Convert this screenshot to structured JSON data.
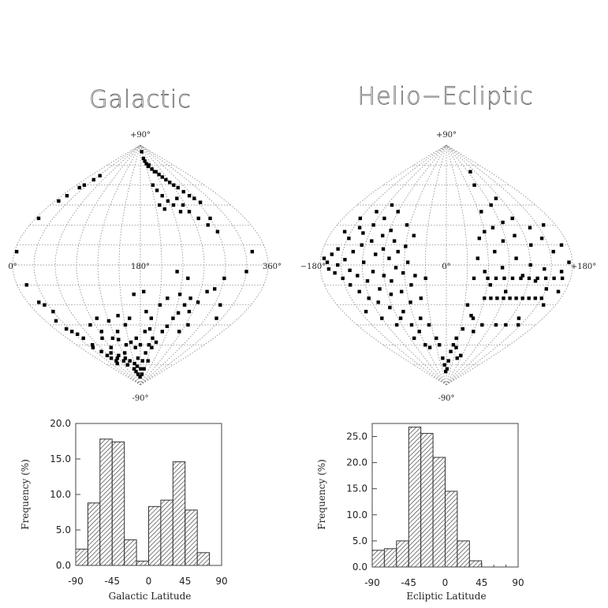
{
  "chart_data": [
    {
      "type": "scatter",
      "title": "Galactic",
      "projection": "sinusoidal equal-area sky map",
      "labels": {
        "top": "+90°",
        "bottom": "-90°",
        "left": "0°",
        "center": "180°",
        "right": "360°"
      },
      "points": [
        [
          12,
          52
        ],
        [
          18,
          58
        ],
        [
          22,
          60
        ],
        [
          30,
          64
        ],
        [
          34,
          67
        ],
        [
          8,
          48
        ],
        [
          5,
          35
        ],
        [
          3,
          10
        ],
        [
          14,
          -15
        ],
        [
          18,
          -28
        ],
        [
          24,
          -30
        ],
        [
          30,
          -35
        ],
        [
          20,
          -42
        ],
        [
          24,
          -48
        ],
        [
          30,
          -50
        ],
        [
          36,
          -52
        ],
        [
          40,
          -55
        ],
        [
          45,
          -60
        ],
        [
          38,
          -62
        ],
        [
          50,
          -65
        ],
        [
          55,
          -68
        ],
        [
          60,
          -70
        ],
        [
          62,
          -74
        ],
        [
          70,
          -72
        ],
        [
          78,
          -66
        ],
        [
          85,
          -70
        ],
        [
          92,
          -62
        ],
        [
          98,
          -68
        ],
        [
          104,
          -72
        ],
        [
          110,
          -75
        ],
        [
          118,
          -70
        ],
        [
          126,
          -66
        ],
        [
          132,
          -72
        ],
        [
          138,
          -78
        ],
        [
          145,
          -80
        ],
        [
          150,
          -74
        ],
        [
          156,
          -82
        ],
        [
          162,
          -76
        ],
        [
          170,
          -70
        ],
        [
          176,
          -84
        ],
        [
          182,
          -78
        ],
        [
          190,
          -72
        ],
        [
          198,
          -66
        ],
        [
          204,
          -60
        ],
        [
          210,
          -55
        ],
        [
          214,
          -62
        ],
        [
          222,
          -58
        ],
        [
          228,
          -50
        ],
        [
          234,
          -46
        ],
        [
          240,
          -40
        ],
        [
          246,
          -36
        ],
        [
          252,
          -30
        ],
        [
          258,
          -25
        ],
        [
          264,
          -35
        ],
        [
          272,
          -28
        ],
        [
          280,
          -20
        ],
        [
          290,
          -18
        ],
        [
          300,
          -10
        ],
        [
          330,
          -5
        ],
        [
          340,
          10
        ],
        [
          300,
          25
        ],
        [
          310,
          -30
        ],
        [
          320,
          -40
        ],
        [
          200,
          85
        ],
        [
          205,
          80
        ],
        [
          210,
          78
        ],
        [
          215,
          76
        ],
        [
          220,
          74
        ],
        [
          226,
          75
        ],
        [
          232,
          72
        ],
        [
          238,
          70
        ],
        [
          244,
          70
        ],
        [
          250,
          68
        ],
        [
          256,
          66
        ],
        [
          262,
          64
        ],
        [
          268,
          62
        ],
        [
          274,
          60
        ],
        [
          280,
          58
        ],
        [
          286,
          55
        ],
        [
          292,
          52
        ],
        [
          298,
          50
        ],
        [
          304,
          47
        ],
        [
          215,
          60
        ],
        [
          222,
          56
        ],
        [
          230,
          52
        ],
        [
          238,
          48
        ],
        [
          246,
          45
        ],
        [
          254,
          40
        ],
        [
          270,
          40
        ],
        [
          280,
          35
        ],
        [
          290,
          30
        ],
        [
          300,
          35
        ],
        [
          260,
          50
        ],
        [
          265,
          45
        ],
        [
          218,
          45
        ],
        [
          226,
          42
        ],
        [
          232,
          -5
        ],
        [
          240,
          -22
        ],
        [
          248,
          -10
        ],
        [
          185,
          -20
        ],
        [
          170,
          -22
        ],
        [
          160,
          -40
        ],
        [
          150,
          -45
        ],
        [
          140,
          -38
        ],
        [
          130,
          -50
        ],
        [
          120,
          -42
        ],
        [
          112,
          -55
        ],
        [
          190,
          -35
        ],
        [
          200,
          -40
        ],
        [
          212,
          -30
        ],
        [
          222,
          -25
        ],
        [
          265,
          -50
        ],
        [
          275,
          -45
        ],
        [
          100,
          -40
        ],
        [
          95,
          -50
        ],
        [
          80,
          -45
        ],
        [
          86,
          -55
        ],
        [
          170,
          -55
        ],
        [
          180,
          -60
        ],
        [
          190,
          -50
        ],
        [
          200,
          -48
        ],
        [
          215,
          -72
        ],
        [
          205,
          -78
        ],
        [
          195,
          -82
        ],
        [
          165,
          -62
        ],
        [
          155,
          -58
        ],
        [
          140,
          -60
        ],
        [
          125,
          -56
        ]
      ]
    },
    {
      "type": "scatter",
      "title": "Helio−Ecliptic",
      "projection": "sinusoidal equal-area sky map",
      "labels": {
        "top": "+90°",
        "bottom": "-90°",
        "left": "−180°",
        "center": "0°",
        "right": "+180°"
      },
      "points": [
        [
          -175,
          5
        ],
        [
          -170,
          2
        ],
        [
          -168,
          -3
        ],
        [
          -165,
          8
        ],
        [
          -160,
          -6
        ],
        [
          -158,
          12
        ],
        [
          -155,
          0
        ],
        [
          -150,
          -10
        ],
        [
          -148,
          20
        ],
        [
          -145,
          4
        ],
        [
          -142,
          -15
        ],
        [
          -140,
          28
        ],
        [
          -138,
          -4
        ],
        [
          -135,
          10
        ],
        [
          -132,
          -20
        ],
        [
          -130,
          24
        ],
        [
          -128,
          -8
        ],
        [
          -125,
          15
        ],
        [
          -122,
          -25
        ],
        [
          -120,
          30
        ],
        [
          -118,
          2
        ],
        [
          -115,
          -12
        ],
        [
          -112,
          18
        ],
        [
          -110,
          -28
        ],
        [
          -108,
          35
        ],
        [
          -105,
          -5
        ],
        [
          -102,
          8
        ],
        [
          -100,
          -18
        ],
        [
          -98,
          22
        ],
        [
          -95,
          -32
        ],
        [
          -92,
          12
        ],
        [
          -90,
          -8
        ],
        [
          -88,
          26
        ],
        [
          -85,
          -22
        ],
        [
          -82,
          5
        ],
        [
          -80,
          -12
        ],
        [
          -78,
          18
        ],
        [
          -75,
          -35
        ],
        [
          -72,
          -2
        ],
        [
          -70,
          10
        ],
        [
          -68,
          -20
        ],
        [
          -65,
          30
        ],
        [
          -62,
          -6
        ],
        [
          -60,
          14
        ],
        [
          -58,
          -28
        ],
        [
          -55,
          2
        ],
        [
          -52,
          -15
        ],
        [
          -50,
          22
        ],
        [
          -48,
          -40
        ],
        [
          -45,
          -8
        ],
        [
          -40,
          -25
        ],
        [
          -35,
          -45
        ],
        [
          -30,
          -10
        ],
        [
          -25,
          -55
        ],
        [
          -20,
          -60
        ],
        [
          -15,
          -70
        ],
        [
          -10,
          -75
        ],
        [
          -5,
          -80
        ],
        [
          5,
          -78
        ],
        [
          10,
          -72
        ],
        [
          15,
          -65
        ],
        [
          20,
          -60
        ],
        [
          25,
          -55
        ],
        [
          35,
          -30
        ],
        [
          40,
          -10
        ],
        [
          45,
          5
        ],
        [
          50,
          20
        ],
        [
          55,
          -5
        ],
        [
          60,
          25
        ],
        [
          65,
          -15
        ],
        [
          70,
          10
        ],
        [
          75,
          28
        ],
        [
          80,
          -2
        ],
        [
          85,
          18
        ],
        [
          90,
          -20
        ],
        [
          95,
          32
        ],
        [
          100,
          5
        ],
        [
          105,
          22
        ],
        [
          110,
          -8
        ],
        [
          115,
          35
        ],
        [
          120,
          0
        ],
        [
          125,
          15
        ],
        [
          130,
          -12
        ],
        [
          135,
          28
        ],
        [
          140,
          -3
        ],
        [
          145,
          20
        ],
        [
          150,
          -18
        ],
        [
          155,
          10
        ],
        [
          160,
          30
        ],
        [
          165,
          -5
        ],
        [
          170,
          15
        ],
        [
          175,
          2
        ],
        [
          60,
          -25
        ],
        [
          70,
          -25
        ],
        [
          80,
          -25
        ],
        [
          90,
          -25
        ],
        [
          100,
          -25
        ],
        [
          110,
          -25
        ],
        [
          120,
          -25
        ],
        [
          130,
          -25
        ],
        [
          140,
          -25
        ],
        [
          150,
          -25
        ],
        [
          60,
          -10
        ],
        [
          72,
          -10
        ],
        [
          84,
          -10
        ],
        [
          96,
          -10
        ],
        [
          108,
          -10
        ],
        [
          120,
          -10
        ],
        [
          132,
          -10
        ],
        [
          144,
          -10
        ],
        [
          156,
          -10
        ],
        [
          168,
          -10
        ],
        [
          65,
          40
        ],
        [
          90,
          45
        ],
        [
          110,
          50
        ],
        [
          100,
          70
        ],
        [
          80,
          60
        ],
        [
          50,
          -40
        ],
        [
          60,
          -50
        ],
        [
          72,
          -45
        ],
        [
          -90,
          40
        ],
        [
          -110,
          45
        ],
        [
          -130,
          40
        ],
        [
          -150,
          35
        ],
        [
          -160,
          25
        ],
        [
          -120,
          -40
        ],
        [
          -100,
          -45
        ],
        [
          -85,
          -40
        ],
        [
          -70,
          -45
        ],
        [
          -60,
          -50
        ],
        [
          -140,
          -35
        ],
        [
          -80,
          -55
        ],
        [
          -60,
          -60
        ],
        [
          -50,
          -62
        ],
        [
          30,
          -62
        ],
        [
          45,
          -70
        ],
        [
          55,
          -68
        ],
        [
          35,
          -48
        ],
        [
          45,
          -38
        ],
        [
          160,
          -30
        ],
        [
          170,
          -20
        ],
        [
          135,
          -40
        ],
        [
          145,
          -45
        ],
        [
          120,
          -45
        ],
        [
          100,
          -45
        ]
      ]
    },
    {
      "type": "bar",
      "xlabel": "Galactic Latitude",
      "ylabel": "Frequency (%)",
      "xlim": [
        -90,
        90
      ],
      "ylim": [
        0,
        20
      ],
      "xticks": [
        "-90",
        "-45",
        "0",
        "45",
        "90"
      ],
      "yticks": [
        "0.0",
        "5.0",
        "10.0",
        "15.0",
        "20.0"
      ],
      "bin_edges": [
        -90,
        -75,
        -60,
        -45,
        -30,
        -15,
        0,
        15,
        30,
        45,
        60,
        75
      ],
      "values": [
        2.3,
        8.8,
        17.8,
        17.4,
        3.6,
        0.6,
        8.3,
        9.2,
        14.6,
        7.8,
        1.8
      ]
    },
    {
      "type": "bar",
      "xlabel": "Ecliptic Latitude",
      "ylabel": "Frequency (%)",
      "xlim": [
        -90,
        90
      ],
      "ylim": [
        0,
        27.5
      ],
      "xticks": [
        "-90",
        "-45",
        "0",
        "45",
        "90"
      ],
      "yticks": [
        "0.0",
        "5.0",
        "10.0",
        "15.0",
        "20.0",
        "25.0"
      ],
      "bin_edges": [
        -90,
        -75,
        -60,
        -45,
        -30,
        -15,
        0,
        15,
        30,
        45,
        60,
        75,
        90
      ],
      "values": [
        3.2,
        3.5,
        5.0,
        26.8,
        25.6,
        21.0,
        14.5,
        5.0,
        1.2,
        0.0,
        0.0,
        0.0
      ]
    }
  ]
}
